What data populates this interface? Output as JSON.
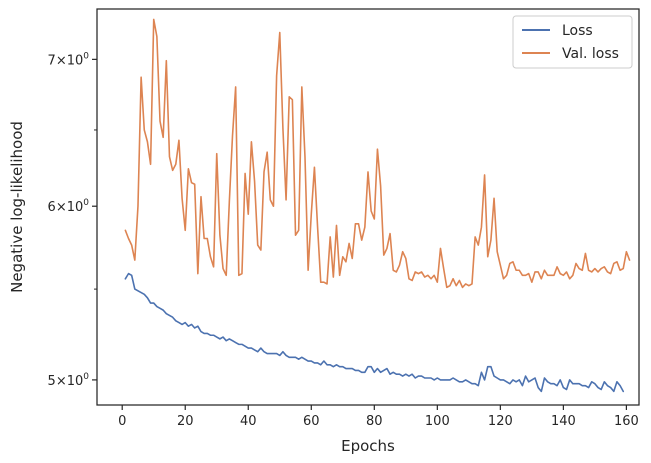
{
  "chart_data": {
    "type": "line",
    "xlabel": "Epochs",
    "ylabel": "Negative log-likelihood",
    "y_scale": "log",
    "xlim": [
      -8,
      164
    ],
    "ylim": [
      4.87,
      7.38
    ],
    "x_ticks": [
      0,
      20,
      40,
      60,
      80,
      100,
      120,
      140,
      160
    ],
    "y_ticks": [
      {
        "value": 5,
        "base": "5",
        "exp": "0"
      },
      {
        "value": 6,
        "base": "6",
        "exp": "0"
      },
      {
        "value": 7,
        "base": "7",
        "exp": "0"
      }
    ],
    "legend_position": "top-right",
    "grid": false,
    "series": [
      {
        "name": "Loss",
        "color": "#4c72b0",
        "values": [
          5.56,
          5.59,
          5.58,
          5.5,
          5.49,
          5.48,
          5.47,
          5.45,
          5.42,
          5.42,
          5.4,
          5.39,
          5.38,
          5.36,
          5.35,
          5.34,
          5.32,
          5.31,
          5.3,
          5.31,
          5.29,
          5.3,
          5.28,
          5.29,
          5.26,
          5.25,
          5.25,
          5.24,
          5.24,
          5.23,
          5.22,
          5.23,
          5.21,
          5.22,
          5.21,
          5.2,
          5.19,
          5.19,
          5.18,
          5.17,
          5.17,
          5.16,
          5.15,
          5.17,
          5.15,
          5.14,
          5.14,
          5.14,
          5.14,
          5.13,
          5.15,
          5.13,
          5.12,
          5.12,
          5.12,
          5.11,
          5.12,
          5.11,
          5.1,
          5.1,
          5.09,
          5.09,
          5.08,
          5.1,
          5.08,
          5.08,
          5.07,
          5.08,
          5.07,
          5.07,
          5.06,
          5.06,
          5.06,
          5.05,
          5.05,
          5.04,
          5.04,
          5.07,
          5.07,
          5.04,
          5.06,
          5.04,
          5.05,
          5.06,
          5.03,
          5.04,
          5.03,
          5.03,
          5.02,
          5.03,
          5.02,
          5.03,
          5.01,
          5.02,
          5.02,
          5.01,
          5.01,
          5.01,
          5.0,
          5.01,
          5.0,
          5.0,
          5.0,
          5.0,
          5.01,
          5.0,
          4.99,
          4.99,
          5.0,
          4.99,
          4.98,
          4.98,
          4.97,
          5.04,
          5.0,
          5.07,
          5.07,
          5.02,
          5.01,
          5.0,
          5.0,
          4.99,
          4.98,
          5.0,
          4.99,
          5.0,
          4.97,
          5.02,
          4.99,
          5.0,
          5.01,
          4.96,
          4.94,
          5.01,
          4.99,
          4.98,
          4.98,
          4.97,
          5.0,
          4.96,
          4.95,
          5.0,
          4.98,
          4.98,
          4.98,
          4.97,
          4.97,
          4.96,
          4.99,
          4.98,
          4.96,
          4.95,
          4.99,
          4.97,
          4.96,
          4.94,
          4.99,
          4.97,
          4.94
        ]
      },
      {
        "name": "Val. loss",
        "color": "#dd8452",
        "values": [
          5.85,
          5.8,
          5.76,
          5.67,
          6.0,
          6.87,
          6.5,
          6.42,
          6.27,
          7.3,
          7.17,
          6.56,
          6.45,
          6.99,
          6.32,
          6.23,
          6.27,
          6.43,
          6.05,
          5.85,
          6.24,
          6.15,
          6.14,
          5.59,
          6.06,
          5.8,
          5.8,
          5.69,
          5.63,
          6.34,
          5.82,
          5.62,
          5.58,
          6.03,
          6.46,
          6.8,
          5.58,
          5.59,
          6.21,
          5.95,
          6.42,
          6.16,
          5.76,
          5.73,
          6.22,
          6.35,
          6.04,
          6.0,
          6.88,
          7.2,
          6.51,
          6.04,
          6.73,
          6.71,
          5.82,
          5.85,
          6.8,
          6.32,
          5.61,
          5.95,
          6.25,
          5.87,
          5.54,
          5.54,
          5.53,
          5.81,
          5.57,
          5.88,
          5.58,
          5.69,
          5.66,
          5.77,
          5.68,
          5.89,
          5.89,
          5.79,
          5.87,
          6.22,
          5.97,
          5.92,
          6.37,
          6.13,
          5.7,
          5.74,
          5.83,
          5.61,
          5.6,
          5.64,
          5.72,
          5.68,
          5.56,
          5.55,
          5.6,
          5.59,
          5.6,
          5.57,
          5.58,
          5.56,
          5.58,
          5.54,
          5.74,
          5.62,
          5.51,
          5.52,
          5.56,
          5.52,
          5.55,
          5.51,
          5.53,
          5.52,
          5.53,
          5.81,
          5.76,
          5.87,
          6.2,
          5.69,
          5.79,
          6.05,
          5.72,
          5.64,
          5.56,
          5.58,
          5.65,
          5.66,
          5.61,
          5.61,
          5.58,
          5.58,
          5.59,
          5.54,
          5.6,
          5.6,
          5.56,
          5.61,
          5.58,
          5.58,
          5.58,
          5.63,
          5.59,
          5.58,
          5.6,
          5.56,
          5.58,
          5.65,
          5.62,
          5.61,
          5.71,
          5.61,
          5.6,
          5.62,
          5.6,
          5.62,
          5.63,
          5.6,
          5.59,
          5.65,
          5.66,
          5.61,
          5.62,
          5.72,
          5.67
        ]
      }
    ]
  }
}
